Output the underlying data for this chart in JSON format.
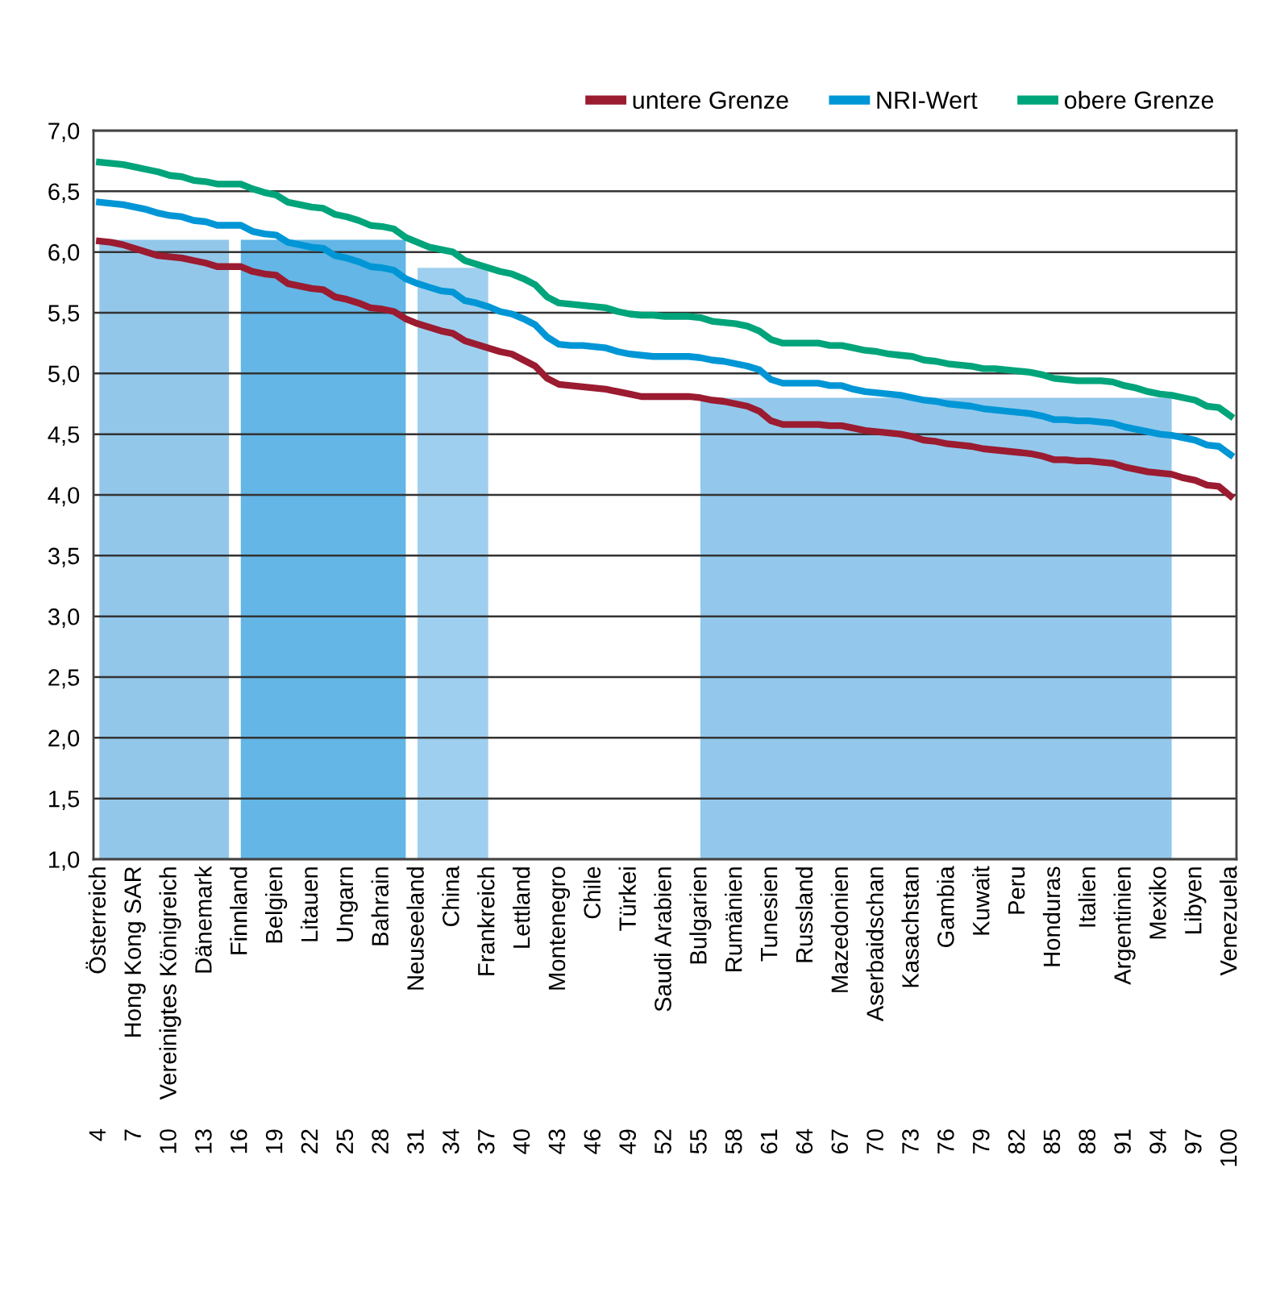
{
  "chart_data": {
    "type": "line",
    "categories": [
      "Österreich",
      null,
      null,
      "Hong Kong SAR",
      null,
      null,
      "Vereinigtes Königreich",
      null,
      null,
      "Dänemark",
      null,
      null,
      "Finnland",
      null,
      null,
      "Belgien",
      null,
      null,
      "Litauen",
      null,
      null,
      "Ungarn",
      null,
      null,
      "Bahrain",
      null,
      null,
      "Neuseeland",
      null,
      null,
      "China",
      null,
      null,
      "Frankreich",
      null,
      null,
      "Lettland",
      null,
      null,
      "Montenegro",
      null,
      null,
      "Chile",
      null,
      null,
      "Türkei",
      null,
      null,
      "Saudi Arabien",
      null,
      null,
      "Bulgarien",
      null,
      null,
      "Rumänien",
      null,
      null,
      "Tunesien",
      null,
      null,
      "Russland",
      null,
      null,
      "Mazedonien",
      null,
      null,
      "Aserbaidschan",
      null,
      null,
      "Kasachstan",
      null,
      null,
      "Gambia",
      null,
      null,
      "Kuwait",
      null,
      null,
      "Peru",
      null,
      null,
      "Honduras",
      null,
      null,
      "Italien",
      null,
      null,
      "Argentinien",
      null,
      null,
      "Mexiko",
      null,
      null,
      "Libyen",
      null,
      null,
      "Venezuela"
    ],
    "series": [
      {
        "type": "area",
        "color": "#93c7ea",
        "values": [
          6.1,
          6.1,
          6.1,
          6.1,
          6.1,
          6.1,
          6.1,
          6.1,
          6.1,
          6.1,
          6.1,
          6.1,
          null,
          null,
          null,
          null,
          null,
          null,
          null,
          null,
          null,
          null,
          null,
          null,
          null,
          null,
          null,
          null,
          null,
          null,
          null,
          null,
          null,
          null,
          null,
          null,
          null,
          null,
          null,
          null,
          null,
          null,
          null,
          null,
          null,
          null,
          null,
          null,
          null,
          null,
          null,
          null,
          null,
          null,
          null,
          null,
          null,
          null,
          null,
          null,
          null,
          null,
          null,
          null,
          null,
          null,
          null,
          null,
          null,
          null,
          null,
          null,
          null,
          null,
          null,
          null,
          null,
          null,
          null,
          null,
          null,
          null,
          null,
          null,
          null,
          null,
          null,
          null,
          null,
          null,
          null,
          null,
          null,
          null,
          null,
          null,
          null
        ]
      },
      {
        "type": "area",
        "color": "#63b6e5",
        "values": [
          null,
          null,
          null,
          null,
          null,
          null,
          null,
          null,
          null,
          null,
          null,
          null,
          6.1,
          6.1,
          6.1,
          6.1,
          6.1,
          6.1,
          6.1,
          6.1,
          6.1,
          6.1,
          6.1,
          6.1,
          6.1,
          6.1,
          6.1,
          null,
          null,
          null,
          null,
          null,
          null,
          null,
          null,
          null,
          null,
          null,
          null,
          null,
          null,
          null,
          null,
          null,
          null,
          null,
          null,
          null,
          null,
          null,
          null,
          null,
          null,
          null,
          null,
          null,
          null,
          null,
          null,
          null,
          null,
          null,
          null,
          null,
          null,
          null,
          null,
          null,
          null,
          null,
          null,
          null,
          null,
          null,
          null,
          null,
          null,
          null,
          null,
          null,
          null,
          null,
          null,
          null,
          null,
          null,
          null,
          null,
          null,
          null,
          null,
          null,
          null,
          null,
          null,
          null,
          null
        ]
      },
      {
        "type": "area",
        "color": "#9fcfee",
        "values": [
          null,
          null,
          null,
          null,
          null,
          null,
          null,
          null,
          null,
          null,
          null,
          null,
          null,
          null,
          null,
          null,
          null,
          null,
          null,
          null,
          null,
          null,
          null,
          null,
          null,
          null,
          null,
          5.87,
          5.87,
          5.87,
          5.87,
          5.87,
          5.87,
          5.87,
          null,
          null,
          null,
          null,
          null,
          null,
          null,
          null,
          null,
          null,
          null,
          null,
          null,
          null,
          null,
          null,
          null,
          null,
          null,
          null,
          null,
          null,
          null,
          null,
          null,
          null,
          null,
          null,
          null,
          null,
          null,
          null,
          null,
          null,
          null,
          null,
          null,
          null,
          null,
          null,
          null,
          null,
          null,
          null,
          null,
          null,
          null,
          null,
          null,
          null,
          null,
          null,
          null,
          null,
          null,
          null,
          null,
          null,
          null,
          null,
          null,
          null,
          null
        ]
      },
      {
        "type": "area",
        "color": "#93c8ec",
        "values": [
          null,
          null,
          null,
          null,
          null,
          null,
          null,
          null,
          null,
          null,
          null,
          null,
          null,
          null,
          null,
          null,
          null,
          null,
          null,
          null,
          null,
          null,
          null,
          null,
          null,
          null,
          null,
          null,
          null,
          null,
          null,
          null,
          null,
          null,
          null,
          null,
          null,
          null,
          null,
          null,
          null,
          null,
          null,
          null,
          null,
          null,
          null,
          null,
          null,
          null,
          null,
          4.8,
          4.8,
          4.8,
          4.8,
          4.8,
          4.8,
          4.8,
          4.8,
          4.8,
          4.8,
          4.8,
          4.8,
          4.8,
          4.8,
          4.8,
          4.8,
          4.8,
          4.8,
          4.8,
          4.8,
          4.8,
          4.8,
          4.8,
          4.8,
          4.8,
          4.8,
          4.8,
          4.8,
          4.8,
          4.8,
          4.8,
          4.8,
          4.8,
          4.8,
          4.8,
          4.8,
          4.8,
          4.8,
          4.8,
          4.8,
          4.8,
          null,
          null,
          null,
          null,
          null
        ]
      },
      {
        "name": "untere Grenze",
        "color": "#9b1b30",
        "values": [
          6.09,
          6.08,
          6.06,
          6.03,
          6.0,
          5.97,
          5.96,
          5.95,
          5.93,
          5.91,
          5.88,
          5.88,
          5.88,
          5.84,
          5.82,
          5.81,
          5.74,
          5.72,
          5.7,
          5.69,
          5.63,
          5.61,
          5.58,
          5.54,
          5.53,
          5.51,
          5.45,
          5.41,
          5.38,
          5.35,
          5.33,
          5.27,
          5.24,
          5.21,
          5.18,
          5.16,
          5.11,
          5.06,
          4.96,
          4.91,
          4.9,
          4.89,
          4.88,
          4.87,
          4.85,
          4.83,
          4.81,
          4.81,
          4.81,
          4.81,
          4.81,
          4.8,
          4.78,
          4.77,
          4.75,
          4.73,
          4.69,
          4.61,
          4.58,
          4.58,
          4.58,
          4.58,
          4.57,
          4.57,
          4.55,
          4.53,
          4.52,
          4.51,
          4.5,
          4.48,
          4.45,
          4.44,
          4.42,
          4.41,
          4.4,
          4.38,
          4.37,
          4.36,
          4.35,
          4.34,
          4.32,
          4.29,
          4.29,
          4.28,
          4.28,
          4.27,
          4.26,
          4.23,
          4.21,
          4.19,
          4.18,
          4.17,
          4.14,
          4.12,
          4.08,
          4.07,
          3.99
        ]
      },
      {
        "name": "NRI-Wert",
        "color": "#0096d6",
        "values": [
          6.41,
          6.4,
          6.39,
          6.37,
          6.35,
          6.32,
          6.3,
          6.29,
          6.26,
          6.25,
          6.22,
          6.22,
          6.22,
          6.17,
          6.15,
          6.14,
          6.08,
          6.06,
          6.04,
          6.03,
          5.97,
          5.95,
          5.92,
          5.88,
          5.87,
          5.85,
          5.78,
          5.74,
          5.71,
          5.68,
          5.67,
          5.6,
          5.58,
          5.55,
          5.51,
          5.49,
          5.45,
          5.4,
          5.3,
          5.24,
          5.23,
          5.23,
          5.22,
          5.21,
          5.18,
          5.16,
          5.15,
          5.14,
          5.14,
          5.14,
          5.14,
          5.13,
          5.11,
          5.1,
          5.08,
          5.06,
          5.03,
          4.95,
          4.92,
          4.92,
          4.92,
          4.92,
          4.9,
          4.9,
          4.87,
          4.85,
          4.84,
          4.83,
          4.82,
          4.8,
          4.78,
          4.77,
          4.75,
          4.74,
          4.73,
          4.71,
          4.7,
          4.69,
          4.68,
          4.67,
          4.65,
          4.62,
          4.62,
          4.61,
          4.61,
          4.6,
          4.59,
          4.56,
          4.54,
          4.52,
          4.5,
          4.49,
          4.47,
          4.45,
          4.41,
          4.4,
          4.33
        ]
      },
      {
        "name": "obere Grenze",
        "color": "#00a47a",
        "values": [
          6.74,
          6.73,
          6.72,
          6.7,
          6.68,
          6.66,
          6.63,
          6.62,
          6.59,
          6.58,
          6.56,
          6.56,
          6.56,
          6.52,
          6.49,
          6.47,
          6.41,
          6.39,
          6.37,
          6.36,
          6.31,
          6.29,
          6.26,
          6.22,
          6.21,
          6.19,
          6.12,
          6.08,
          6.04,
          6.02,
          6.0,
          5.93,
          5.9,
          5.87,
          5.84,
          5.82,
          5.78,
          5.73,
          5.63,
          5.58,
          5.57,
          5.56,
          5.55,
          5.54,
          5.51,
          5.49,
          5.48,
          5.48,
          5.47,
          5.47,
          5.47,
          5.46,
          5.43,
          5.42,
          5.41,
          5.39,
          5.35,
          5.28,
          5.25,
          5.25,
          5.25,
          5.25,
          5.23,
          5.23,
          5.21,
          5.19,
          5.18,
          5.16,
          5.15,
          5.14,
          5.11,
          5.1,
          5.08,
          5.07,
          5.06,
          5.04,
          5.04,
          5.03,
          5.02,
          5.01,
          4.99,
          4.96,
          4.95,
          4.94,
          4.94,
          4.94,
          4.93,
          4.9,
          4.88,
          4.85,
          4.83,
          4.82,
          4.8,
          4.78,
          4.73,
          4.72,
          4.65
        ]
      }
    ],
    "annotations": [
      "4",
      "7",
      "10",
      "13",
      "16",
      "19",
      "22",
      "25",
      "28",
      "31",
      "34",
      "37",
      "40",
      "43",
      "46",
      "49",
      "52",
      "55",
      "58",
      "61",
      "64",
      "67",
      "70",
      "73",
      "76",
      "79",
      "82",
      "85",
      "88",
      "91",
      "94",
      "97",
      "100"
    ],
    "ylim": [
      1.0,
      7.0
    ],
    "yticks": [
      {
        "value": 1.0,
        "label": "1,0"
      },
      {
        "value": 1.5,
        "label": "1,5"
      },
      {
        "value": 2.0,
        "label": "2,0"
      },
      {
        "value": 2.5,
        "label": "2,5"
      },
      {
        "value": 3.0,
        "label": "3,0"
      },
      {
        "value": 3.5,
        "label": "3,5"
      },
      {
        "value": 4.0,
        "label": "4,0"
      },
      {
        "value": 4.5,
        "label": "4,5"
      },
      {
        "value": 5.0,
        "label": "5,0"
      },
      {
        "value": 5.5,
        "label": "5,5"
      },
      {
        "value": 6.0,
        "label": "6,0"
      },
      {
        "value": 6.5,
        "label": "6,5"
      },
      {
        "value": 7.0,
        "label": "7,0"
      }
    ],
    "grid": "y",
    "legend": "top right",
    "marker": "none",
    "line_style": "solid"
  }
}
